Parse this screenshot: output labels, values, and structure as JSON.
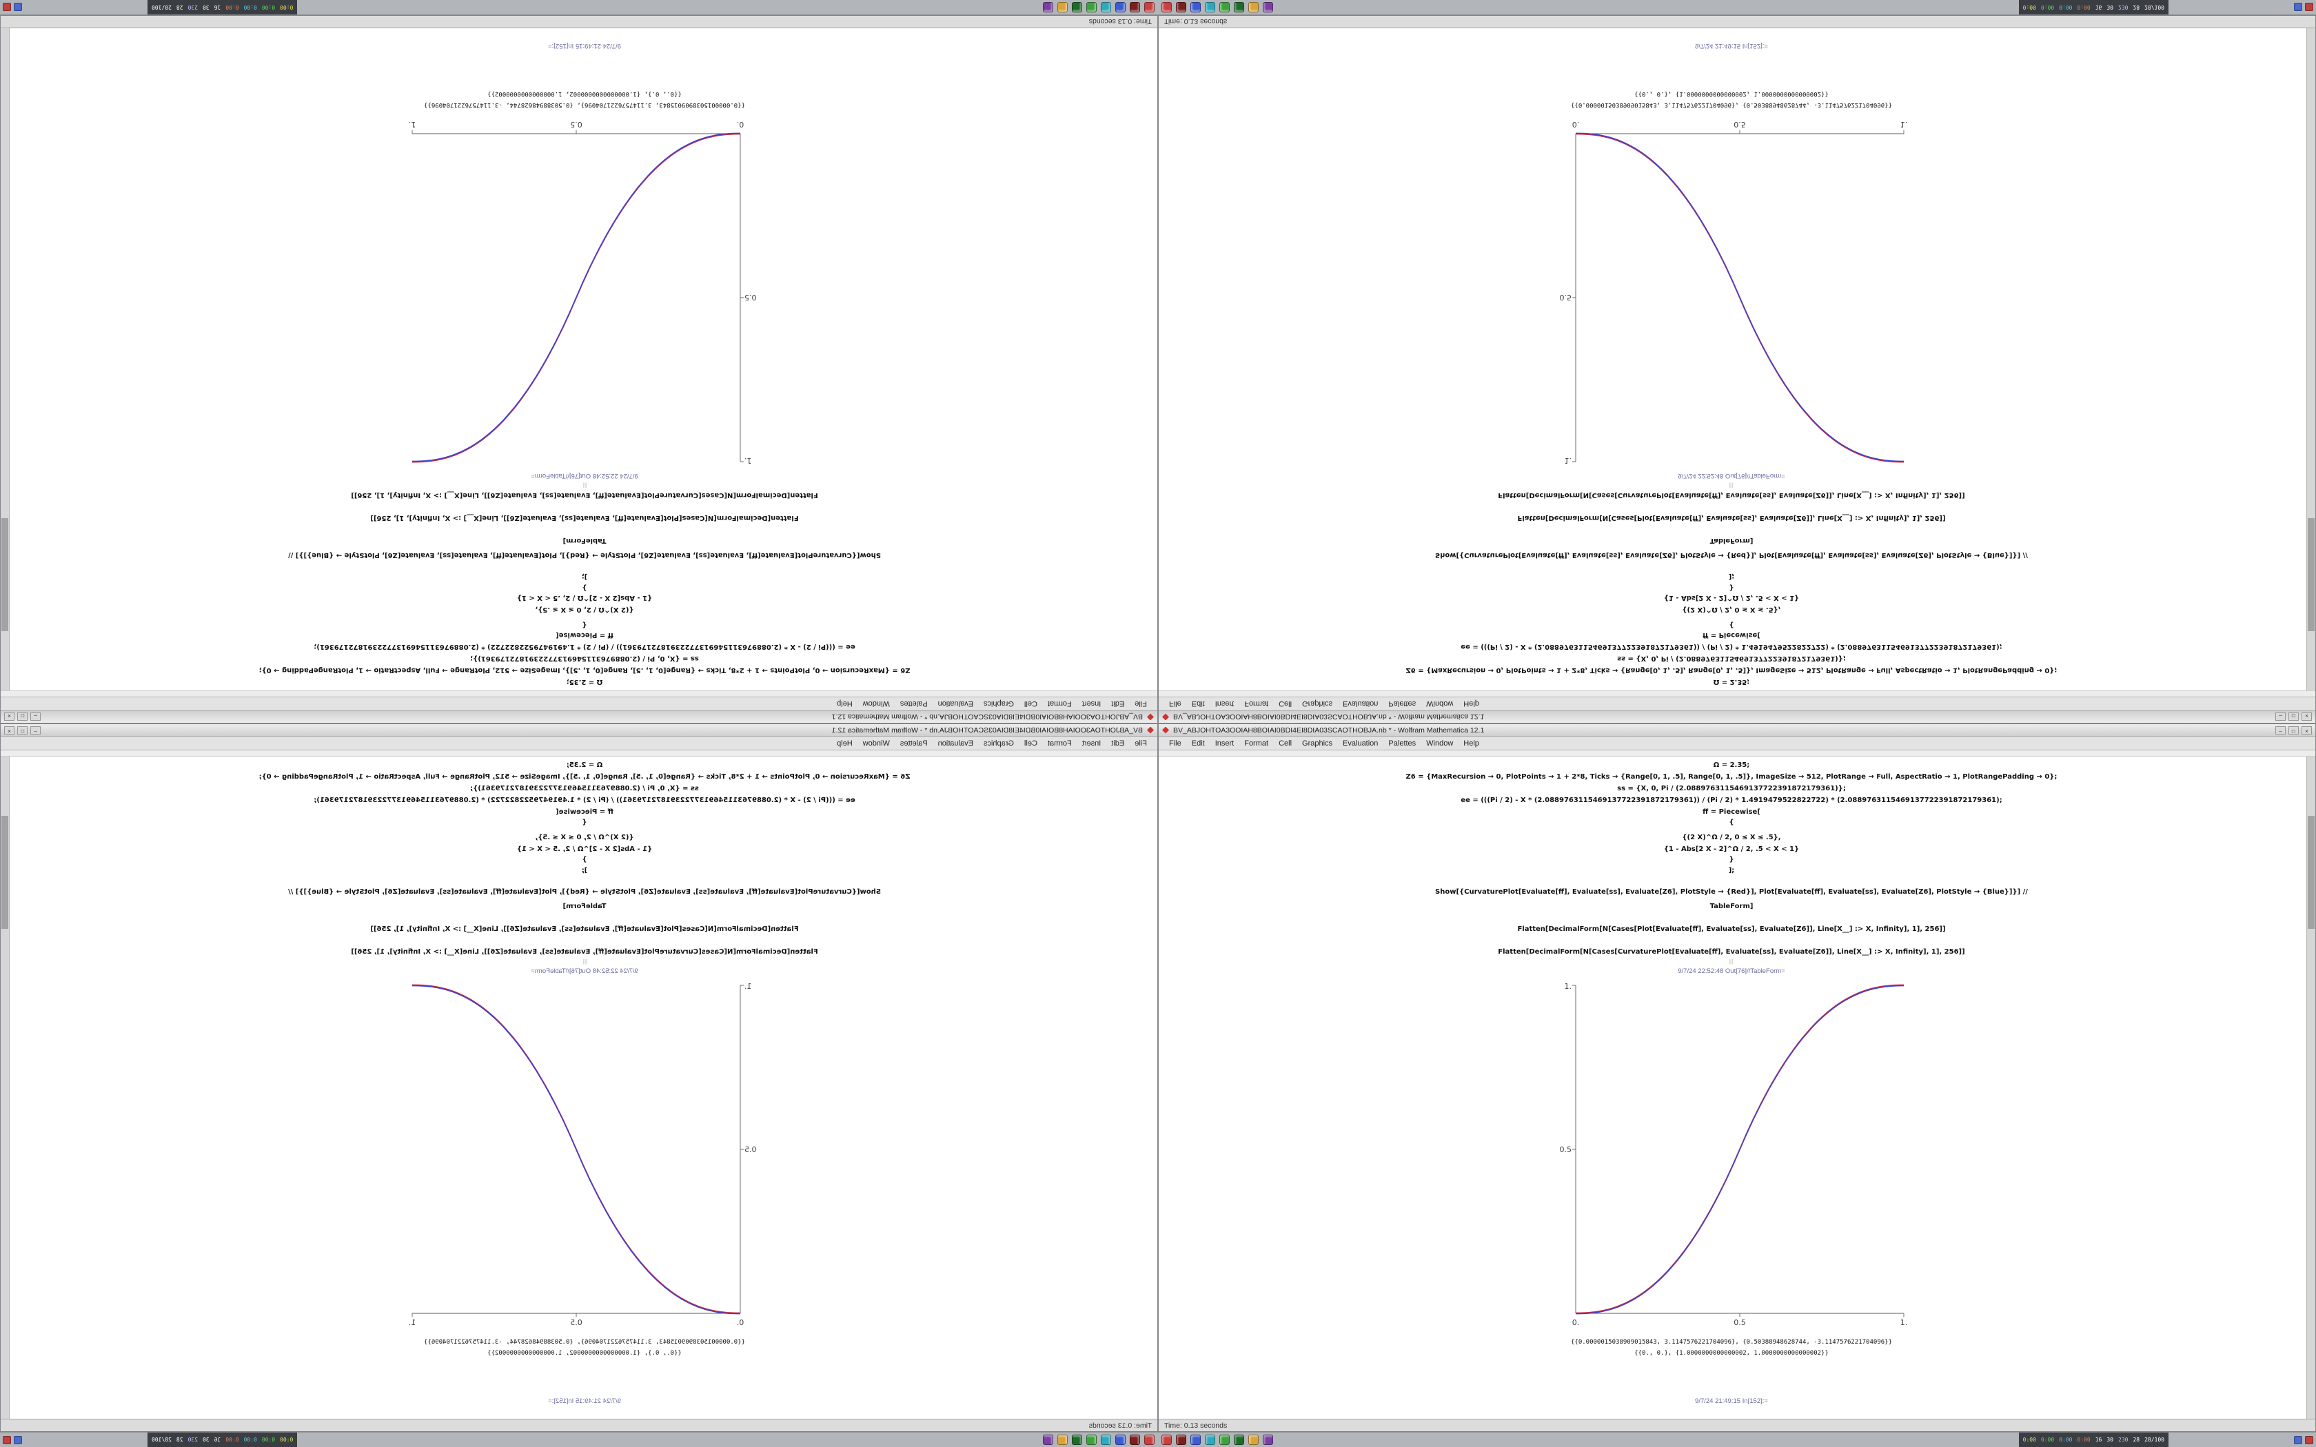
{
  "window": {
    "title": "BV_ABJOHTOA3OOIAH8BOIAI0BDI4EI8DIA03SCAOTHOBJA.nb * - Wolfram Mathematica 12.1",
    "buttons": {
      "minimize": "–",
      "maximize": "□",
      "close": "×"
    }
  },
  "menu": {
    "items": [
      "File",
      "Edit",
      "Insert",
      "Format",
      "Cell",
      "Graphics",
      "Evaluation",
      "Palettes",
      "Window",
      "Help"
    ]
  },
  "notebook": {
    "code": [
      "Ω = 2.35;",
      "Z6 = {MaxRecursion → 0, PlotPoints → 1 + 2*8, Ticks → {Range[0, 1, .5], Range[0, 1, .5]}, ImageSize → 512, PlotRange → Full, AspectRatio → 1, PlotRangePadding → 0};",
      "ss = {X, 0, Pi / (2.0889763115469137722391872179361)};",
      "ee = (((Pi / 2) - X * (2.0889763115469137722391872179361)) / (Pi / 2) * 1.4919479522822722) * (2.0889763115469137722391872179361);",
      "ff = Piecewise[",
      "{",
      "{(2 X)^Ω / 2, 0 ≤ X ≤ .5},",
      "{1 - Abs[2 X - 2]^Ω / 2, .5 < X < 1}",
      "}",
      "];",
      "Show[{CurvaturePlot[Evaluate[ff], Evaluate[ss], Evaluate[Z6], PlotStyle → {Red}], Plot[Evaluate[ff], Evaluate[ss], Evaluate[Z6], PlotStyle → {Blue}]}] //",
      "TableForm]",
      "Flatten[DecimalForm[N[Cases[Plot[Evaluate[ff], Evaluate[ss], Evaluate[Z6]], Line[X__] :> X, Infinity], 1], 256]]",
      "Flatten[DecimalForm[N[Cases[CurvaturePlot[Evaluate[ff], Evaluate[ss], Evaluate[Z6]], Line[X__] :> X, Infinity], 1], 256]]"
    ],
    "separator": "||",
    "out_label": "9/7/24 22:52:48 Out[76]//TableForm=",
    "outputs": [
      "{{0.0000015038909015843, 3.1147576221704096}, {0.50388948628744, -3.1147576221704096}}",
      "{{0., 0.}, {1.0000000000000002, 1.0000000000000002}}"
    ],
    "in_label": "9/7/24 21:49:15 In[152]:="
  },
  "statusbar": {
    "text": "Time: 0.13 seconds"
  },
  "taskbar": {
    "icons": [
      {
        "name": "launcher-icon-1",
        "color": "#c84040"
      },
      {
        "name": "launcher-icon-2",
        "color": "#7a1f1f"
      },
      {
        "name": "launcher-icon-3",
        "color": "#3b5bd0"
      },
      {
        "name": "launcher-icon-4",
        "color": "#2fa8bc"
      },
      {
        "name": "launcher-icon-5",
        "color": "#3fa03f"
      },
      {
        "name": "launcher-icon-6",
        "color": "#1f6a2a"
      },
      {
        "name": "launcher-icon-7",
        "color": "#d9a23a"
      },
      {
        "name": "launcher-icon-8",
        "color": "#7a3fa0"
      }
    ],
    "tray": [
      {
        "t": "0:00",
        "c": "#e0e060"
      },
      {
        "t": "0:00",
        "c": "#60d060"
      },
      {
        "t": "0:00",
        "c": "#60c0e0"
      },
      {
        "t": "0:00",
        "c": "#e08060"
      },
      {
        "t": "16",
        "c": "#ffffff"
      },
      {
        "t": "30",
        "c": "#ffffff"
      },
      {
        "t": "230",
        "c": "#c0c0ff"
      },
      {
        "t": "28",
        "c": "#ffffff"
      },
      {
        "t": "28/100",
        "c": "#ffffff"
      }
    ],
    "corner_icons": [
      {
        "name": "tray-icon-network",
        "color": "#4a6ad0"
      },
      {
        "name": "tray-icon-alert",
        "color": "#c04040"
      }
    ]
  },
  "chart_data": {
    "type": "line",
    "title": "",
    "xlabel": "",
    "ylabel": "",
    "xlim": [
      0,
      1
    ],
    "ylim": [
      0,
      1
    ],
    "xticks": [
      0,
      0.5,
      1
    ],
    "yticks": [
      0.5,
      1
    ],
    "tick_labels": {
      "x": [
        "0.",
        "0.5",
        "1."
      ],
      "y": [
        "1.",
        "0.5"
      ]
    },
    "exponent": 2.35,
    "x": [
      0,
      0.05,
      0.1,
      0.15,
      0.2,
      0.25,
      0.3,
      0.35,
      0.4,
      0.45,
      0.5,
      0.55,
      0.6,
      0.65,
      0.7,
      0.75,
      0.8,
      0.85,
      0.9,
      0.95,
      1
    ],
    "series": [
      {
        "name": "CurvaturePlot (Red)",
        "values": [
          0,
          0.0022,
          0.0114,
          0.0295,
          0.058,
          0.098,
          0.1506,
          0.2163,
          0.296,
          0.3903,
          0.5,
          0.6097,
          0.704,
          0.7837,
          0.8494,
          0.902,
          0.942,
          0.9705,
          0.9886,
          0.9978,
          1
        ]
      },
      {
        "name": "Plot (Blue)",
        "values": [
          0,
          0.0022,
          0.0114,
          0.0295,
          0.058,
          0.098,
          0.1506,
          0.2163,
          0.296,
          0.3903,
          0.5,
          0.6097,
          0.704,
          0.7837,
          0.8494,
          0.902,
          0.942,
          0.9705,
          0.9886,
          0.9978,
          1
        ]
      }
    ],
    "curve_colors": [
      "#cc2a3c",
      "#4040cc"
    ],
    "legend": "none",
    "description": "Sigmoid smoothstep curve y=(2x)^2.35/2 for 0<=x<=0.5 and y=1-(2-2x)^2.35/2 for 0.5<x<=1; red and blue curves overlap appearing purple. Same plot shown 4 times: identity (bottom-right), mirrored horizontally (bottom-left), mirrored vertically (top-right), rotated 180 deg (top-left)."
  }
}
